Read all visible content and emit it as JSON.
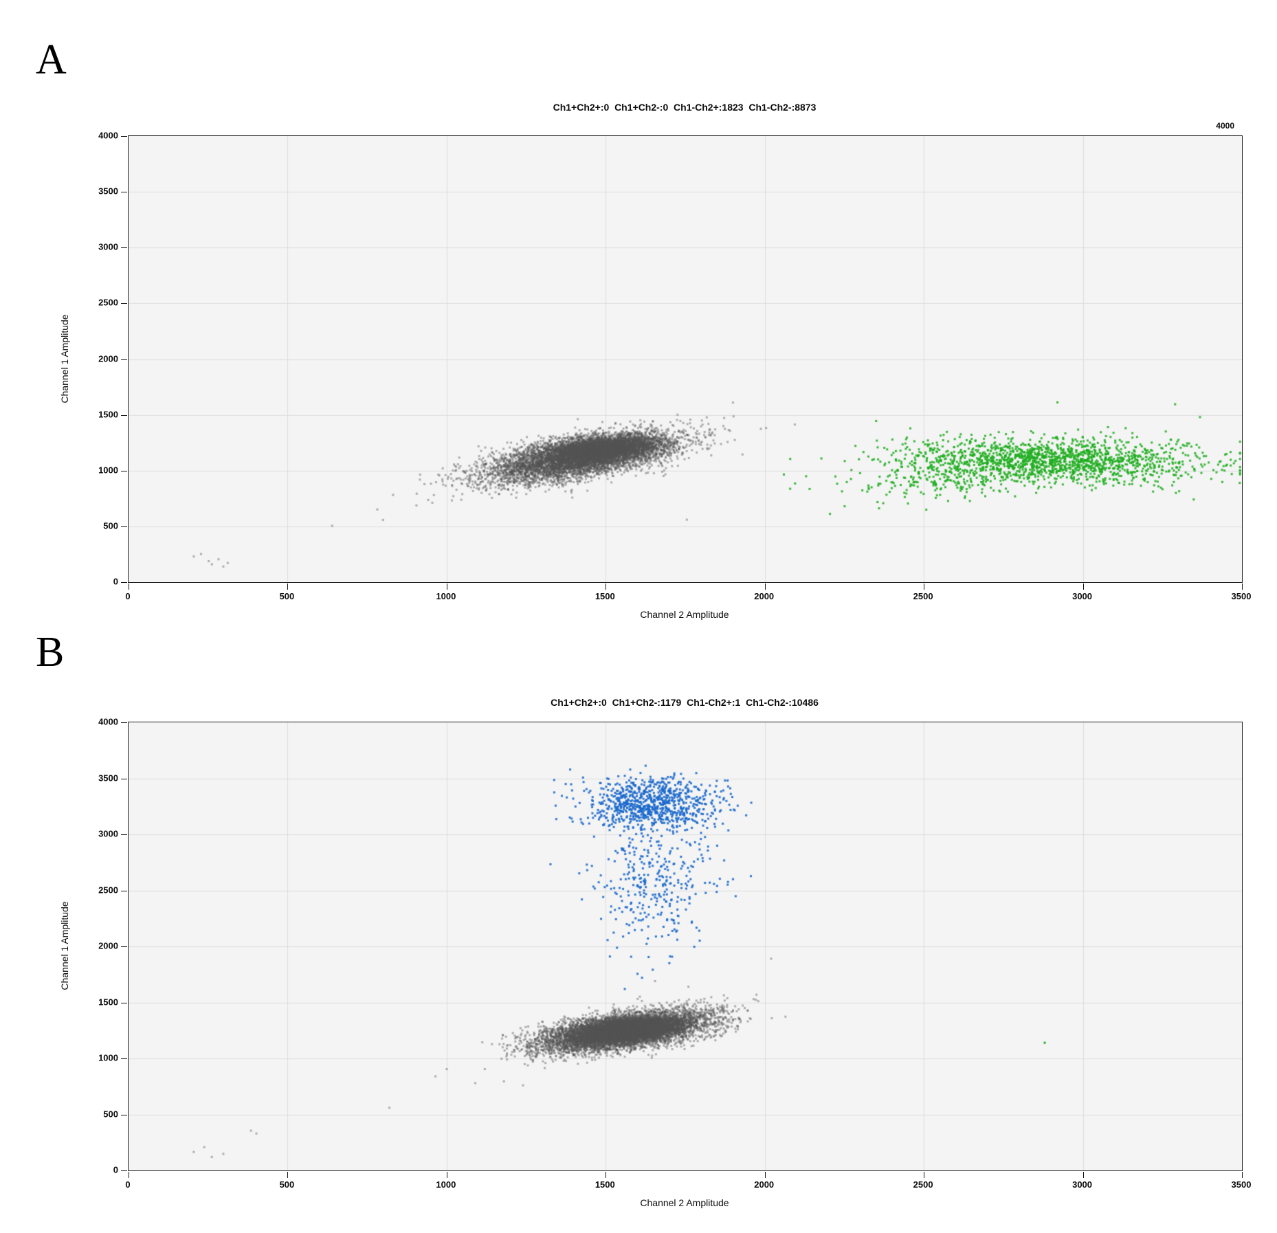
{
  "figure": {
    "background": "#ffffff"
  },
  "panel_labels": [
    "A",
    "B"
  ],
  "chart_data": [
    {
      "type": "scatter",
      "panel": "A",
      "title": "Ch1+Ch2+:0  Ch1+Ch2-:0  Ch1-Ch2+:1823  Ch1-Ch2-:8873",
      "right_axis_max_label": "4000",
      "xlabel": "Channel 2 Amplitude",
      "ylabel": "Channel 1 Amplitude",
      "xlim": [
        0,
        3500
      ],
      "ylim": [
        0,
        4000
      ],
      "x_ticks": [
        0,
        500,
        1000,
        1500,
        2000,
        2500,
        3000,
        3500
      ],
      "y_ticks": [
        0,
        500,
        1000,
        1500,
        2000,
        2500,
        3000,
        3500,
        4000
      ],
      "grid": true,
      "legend": false,
      "plot_bg": "#f4f4f4",
      "grid_color": "#dcdcdc",
      "frame_color": "#1a1a1a",
      "counts": {
        "Ch1+Ch2+": 0,
        "Ch1+Ch2-": 0,
        "Ch1-Ch2+": 1823,
        "Ch1-Ch2-": 8873
      },
      "series": [
        {
          "name": "Ch1-Ch2- double-negative droplets (gray)",
          "color": "#545454",
          "opacity": 0.45,
          "dot_size": 3,
          "count": 8873,
          "clusters": [
            {
              "cx": 1420,
              "cy": 1115,
              "sx": 150,
              "sy": 110,
              "rho": 0.62,
              "n": 5657
            },
            {
              "cx": 1485,
              "cy": 1195,
              "sx": 85,
              "sy": 58,
              "rho": 0.3,
              "n": 3200
            }
          ],
          "points": [
            [
              205,
              230
            ],
            [
              228,
              252
            ],
            [
              252,
              188
            ],
            [
              262,
              160
            ],
            [
              283,
              205
            ],
            [
              298,
              140
            ],
            [
              312,
              172
            ],
            [
              640,
              505
            ],
            [
              782,
              652
            ],
            [
              800,
              558
            ],
            [
              905,
              688
            ],
            [
              955,
              712
            ],
            [
              1755,
              560
            ],
            [
              1900,
              1610
            ],
            [
              1870,
              1400
            ],
            [
              1930,
              1145
            ]
          ]
        },
        {
          "name": "Ch1-Ch2+ Channel-2-positive droplets (green)",
          "color": "#1fae1f",
          "opacity": 0.88,
          "dot_size": 3,
          "count": 1823,
          "clusters": [
            {
              "cx": 2900,
              "cy": 1090,
              "sx": 230,
              "sy": 100,
              "rho": -0.12,
              "n": 1632
            },
            {
              "cx": 2540,
              "cy": 900,
              "sx": 150,
              "sy": 85,
              "rho": 0.2,
              "n": 180
            }
          ],
          "points": [
            [
              2080,
              1105
            ],
            [
              2130,
              950
            ],
            [
              2060,
              965
            ],
            [
              2205,
              612
            ],
            [
              2350,
              1445
            ],
            [
              2920,
              1612
            ],
            [
              3290,
              1595
            ],
            [
              3368,
              1480
            ],
            [
              3420,
              985
            ],
            [
              3445,
              1000
            ],
            [
              2450,
              705
            ]
          ]
        }
      ]
    },
    {
      "type": "scatter",
      "panel": "B",
      "title": "Ch1+Ch2+:0  Ch1+Ch2-:1179  Ch1-Ch2+:1  Ch1-Ch2-:10486",
      "xlabel": "Channel 2 Amplitude",
      "ylabel": "Channel 1 Amplitude",
      "xlim": [
        0,
        3500
      ],
      "ylim": [
        0,
        4000
      ],
      "x_ticks": [
        0,
        500,
        1000,
        1500,
        2000,
        2500,
        3000,
        3500
      ],
      "y_ticks": [
        0,
        500,
        1000,
        1500,
        2000,
        2500,
        3000,
        3500,
        4000
      ],
      "grid": true,
      "legend": false,
      "plot_bg": "#f4f4f4",
      "grid_color": "#dcdcdc",
      "frame_color": "#1a1a1a",
      "counts": {
        "Ch1+Ch2+": 0,
        "Ch1+Ch2-": 1179,
        "Ch1-Ch2+": 1,
        "Ch1-Ch2-": 10486
      },
      "series": [
        {
          "name": "Ch1-Ch2- double-negative droplets (gray)",
          "color": "#545454",
          "opacity": 0.45,
          "dot_size": 3,
          "count": 10486,
          "clusters": [
            {
              "cx": 1555,
              "cy": 1240,
              "sx": 130,
              "sy": 90,
              "rho": 0.55,
              "n": 7470
            },
            {
              "cx": 1580,
              "cy": 1265,
              "sx": 72,
              "sy": 48,
              "rho": 0.3,
              "n": 3000
            }
          ],
          "points": [
            [
              205,
              165
            ],
            [
              238,
              208
            ],
            [
              262,
              120
            ],
            [
              298,
              148
            ],
            [
              385,
              355
            ],
            [
              402,
              330
            ],
            [
              820,
              560
            ],
            [
              965,
              840
            ],
            [
              1090,
              780
            ],
            [
              1120,
              905
            ],
            [
              1180,
              795
            ],
            [
              2020,
              1890
            ],
            [
              1900,
              1420
            ],
            [
              1240,
              760
            ],
            [
              1655,
              1690
            ],
            [
              1760,
              1640
            ]
          ]
        },
        {
          "name": "Ch1+Ch2- Channel-1-positive droplets (blue)",
          "color": "#1b69cd",
          "opacity": 0.9,
          "dot_size": 3,
          "count": 1179,
          "clusters": [
            {
              "cx": 1640,
              "cy": 3270,
              "sx": 105,
              "sy": 120,
              "rho": 0,
              "n": 852
            },
            {
              "cx": 1655,
              "cy": 2560,
              "sx": 92,
              "sy": 270,
              "rho": 0,
              "n": 320
            }
          ],
          "points": [
            [
              1560,
              1620
            ],
            [
              1600,
              1755
            ],
            [
              1635,
              1905
            ],
            [
              1700,
              1850
            ],
            [
              1725,
              2060
            ],
            [
              1900,
              2600
            ],
            [
              1560,
              2850
            ]
          ]
        },
        {
          "name": "Ch1-Ch2+ single Channel-2-positive droplet (green)",
          "color": "#1fae1f",
          "opacity": 1,
          "dot_size": 3,
          "count": 1,
          "clusters": [],
          "points": [
            [
              2880,
              1140
            ]
          ]
        }
      ]
    }
  ]
}
